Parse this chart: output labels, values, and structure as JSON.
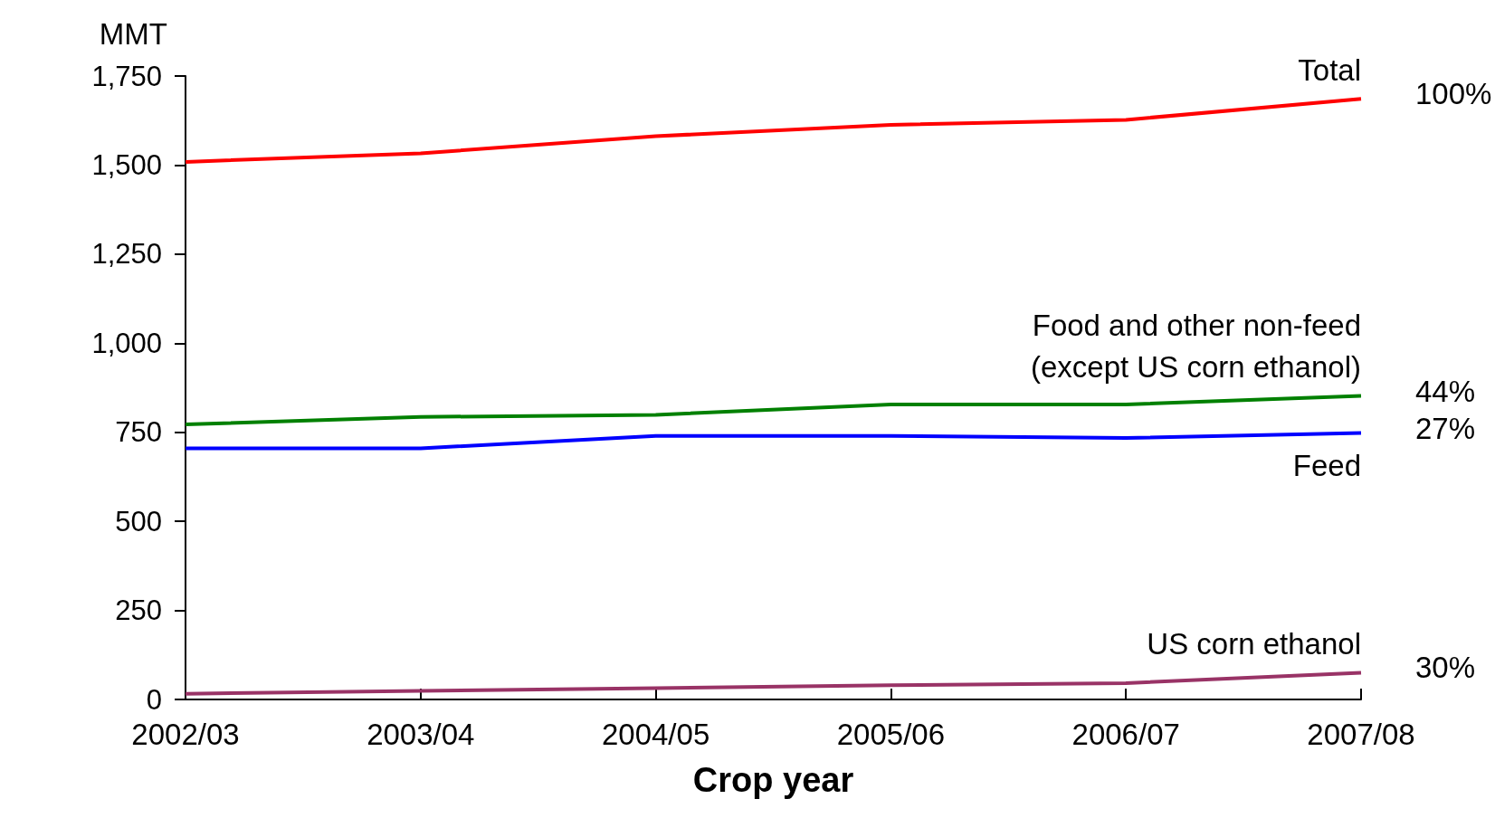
{
  "chart_data": {
    "type": "line",
    "ylabel": "MMT",
    "xlabel": "Crop year",
    "categories": [
      "2002/03",
      "2003/04",
      "2004/05",
      "2005/06",
      "2006/07",
      "2007/08"
    ],
    "series": [
      {
        "name": "Total",
        "color": "#ff0000",
        "values": [
          1509,
          1533,
          1581,
          1613,
          1627,
          1686
        ]
      },
      {
        "name": "Food and other non-feed\n(except US corn ethanol)",
        "color": "#008000",
        "values": [
          772,
          793,
          799,
          828,
          828,
          852
        ]
      },
      {
        "name": "Feed",
        "color": "#0000ff",
        "values": [
          705,
          705,
          740,
          740,
          734,
          748
        ]
      },
      {
        "name": "US corn ethanol",
        "color": "#993366",
        "values": [
          16,
          24,
          32,
          40,
          46,
          75
        ]
      }
    ],
    "annotations": [
      {
        "text": "100%",
        "x": "2007/08",
        "y": 1686
      },
      {
        "text": "44%",
        "x": "2007/08",
        "y": 852
      },
      {
        "text": "27%",
        "x": "2007/08",
        "y": 748
      },
      {
        "text": "30%",
        "x": "2007/08",
        "y": 75
      }
    ],
    "ylim": [
      0,
      1750
    ],
    "yticks": [
      0,
      250,
      500,
      750,
      {
        "value": 1000,
        "label": "1,000"
      },
      {
        "value": 1250,
        "label": "1,250"
      },
      {
        "value": 1500,
        "label": "1,500"
      },
      {
        "value": 1750,
        "label": "1,750"
      }
    ],
    "grid": false,
    "legend": false,
    "marker": "none",
    "line_style": "solid"
  }
}
